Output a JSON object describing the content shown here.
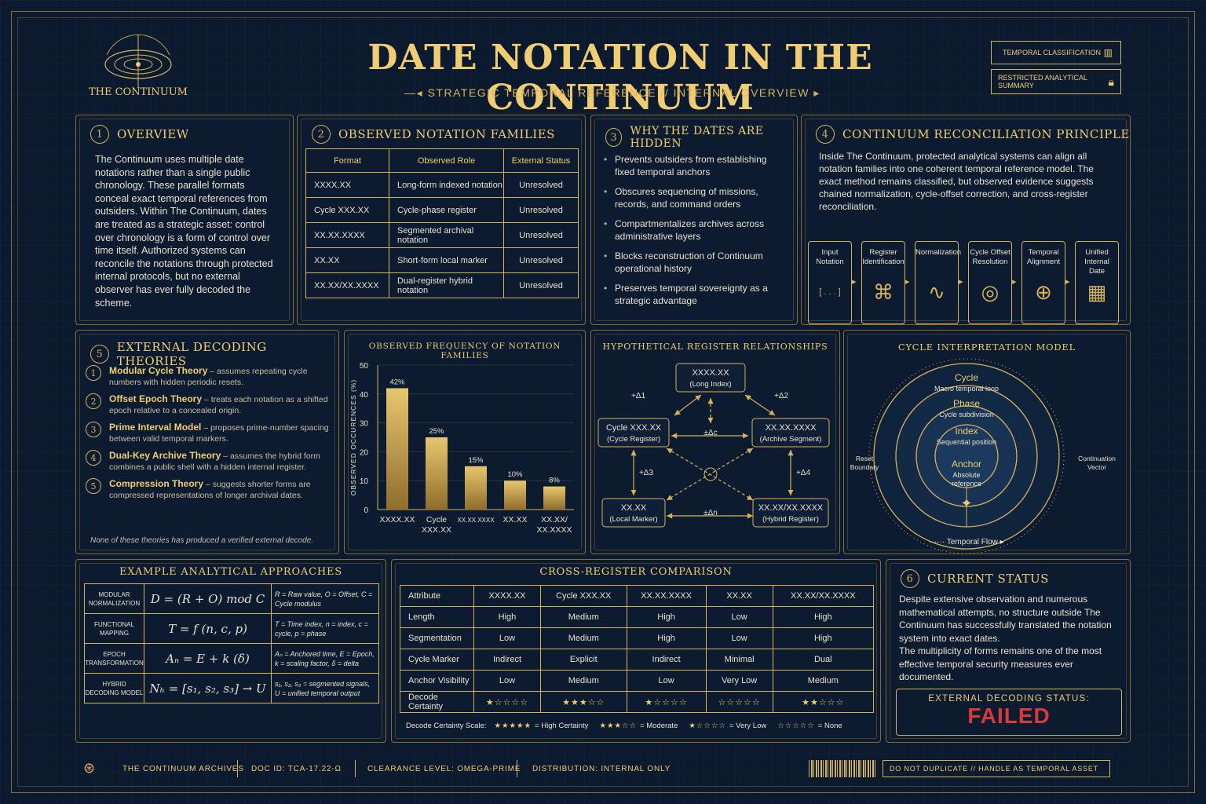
{
  "header": {
    "title": "DATE NOTATION IN THE CONTINUUM",
    "subtitle": "STRATEGIC TEMPORAL REFERENCE // INTERNAL OVERVIEW",
    "logo_text": "THE CONTINUUM",
    "badge1": "TEMPORAL CLASSIFICATION",
    "badge2": "RESTRICTED ANALYTICAL SUMMARY"
  },
  "overview": {
    "num": "1",
    "title": "OVERVIEW",
    "text": "The Continuum uses multiple date notations rather than a single public chronology. These parallel formats conceal exact temporal references from outsiders. Within The Continuum, dates are treated as a strategic asset: control over chronology is a form of control over time itself. Authorized systems can reconcile the notations through protected internal protocols, but no external observer has ever fully decoded the scheme."
  },
  "families": {
    "num": "2",
    "title": "OBSERVED NOTATION FAMILIES",
    "headers": [
      "Format",
      "Observed Role",
      "External Status"
    ],
    "rows": [
      [
        "XXXX.XX",
        "Long-form indexed notation",
        "Unresolved"
      ],
      [
        "Cycle XXX.XX",
        "Cycle-phase register",
        "Unresolved"
      ],
      [
        "XX.XX.XXXX",
        "Segmented archival notation",
        "Unresolved"
      ],
      [
        "XX.XX",
        "Short-form local marker",
        "Unresolved"
      ],
      [
        "XX.XX/XX.XXXX",
        "Dual-register hybrid notation",
        "Unresolved"
      ]
    ]
  },
  "hidden": {
    "num": "3",
    "title": "WHY THE DATES ARE HIDDEN",
    "items": [
      "Prevents outsiders from establishing fixed temporal anchors",
      "Obscures sequencing of missions, records, and command orders",
      "Compartmentalizes archives across administrative layers",
      "Blocks reconstruction of Continuum operational history",
      "Preserves temporal sovereignty as a strategic advantage"
    ]
  },
  "reconcile": {
    "num": "4",
    "title": "CONTINUUM RECONCILIATION PRINCIPLE",
    "text": "Inside The Continuum, protected analytical systems can align all notation families into one coherent temporal reference model. The exact method remains classified, but observed evidence suggests chained normalization, cycle-offset correction, and cross-register reconciliation.",
    "steps": [
      "Input Notation",
      "Register Identification",
      "Normalization",
      "Cycle Offset Resolution",
      "Temporal Alignment",
      "Unified Internal Date"
    ],
    "input_glyph": "[ . . . ]"
  },
  "theories": {
    "num": "5",
    "title": "EXTERNAL DECODING THEORIES",
    "items": [
      {
        "n": "1",
        "name": "Modular Cycle Theory",
        "desc": " – assumes repeating cycle numbers with hidden periodic resets."
      },
      {
        "n": "2",
        "name": "Offset Epoch Theory",
        "desc": " – treats each notation as a shifted epoch relative to a concealed origin."
      },
      {
        "n": "3",
        "name": "Prime Interval Model",
        "desc": " – proposes prime-number spacing between valid temporal markers."
      },
      {
        "n": "4",
        "name": "Dual-Key Archive Theory",
        "desc": " – assumes the hybrid form combines a public shell with a hidden internal register."
      },
      {
        "n": "5",
        "name": "Compression Theory",
        "desc": " – suggests shorter forms are compressed representations of longer archival dates."
      }
    ],
    "footnote": "None of these theories has produced a verified external decode."
  },
  "chart_data": {
    "type": "bar",
    "title": "OBSERVED FREQUENCY OF NOTATION FAMILIES",
    "ylabel": "OBSERVED OCCURENCES (%)",
    "categories": [
      "XXXX.XX",
      "Cycle XXX.XX",
      "XX.XX.XXXX",
      "XX.XX",
      "XX.XX/ XX.XXXX"
    ],
    "values": [
      42,
      25,
      15,
      10,
      8
    ],
    "labels": [
      "42%",
      "25%",
      "15%",
      "10%",
      "8%"
    ],
    "ylim": [
      0,
      50
    ],
    "yticks": [
      0,
      10,
      20,
      30,
      40,
      50
    ]
  },
  "registers": {
    "title": "HYPOTHETICAL REGISTER RELATIONSHIPS",
    "nodes": [
      {
        "l1": "XXXX.XX",
        "l2": "(Long Index)"
      },
      {
        "l1": "Cycle XXX.XX",
        "l2": "(Cycle Register)"
      },
      {
        "l1": "XX.XX.XXXX",
        "l2": "(Archive Segment)"
      },
      {
        "l1": "XX.XX",
        "l2": "(Local Marker)"
      },
      {
        "l1": "XX.XX/XX.XXXX",
        "l2": "(Hybrid Register)"
      }
    ],
    "deltas": [
      "+Δ1",
      "+Δ2",
      "±Δc",
      "+Δ3",
      "+Δ4",
      "±Δn"
    ]
  },
  "cycle": {
    "title": "CYCLE INTERPRETATION MODEL",
    "rings": [
      {
        "name": "Cycle",
        "desc": "Macro temporal loop"
      },
      {
        "name": "Phase",
        "desc": "Cycle subdivision"
      },
      {
        "name": "Index",
        "desc": "Sequential position"
      },
      {
        "name": "Anchor",
        "desc": "Absolute reference"
      }
    ],
    "left_label": "Reset Boundary",
    "right_label": "Continuation Vector",
    "bottom_label": "Temporal Flow"
  },
  "approaches": {
    "title": "EXAMPLE ANALYTICAL APPROACHES",
    "rows": [
      {
        "name": "MODULAR NORMALIZATION",
        "formula": "D = (R + O) mod C",
        "note": "R = Raw value, O = Offset, C = Cycle modulus"
      },
      {
        "name": "FUNCTIONAL MAPPING",
        "formula": "T = f (n, c, p)",
        "note": "T = Time index, n = index, c = cycle, p = phase"
      },
      {
        "name": "EPOCH TRANSFORMATION",
        "formula": "Aₙ = E + k (δ)",
        "note": "Aₙ = Anchored time, E = Epoch, k = scaling factor, δ = delta"
      },
      {
        "name": "HYBRID DECODING MODEL",
        "formula": "Nₕ = [s₁, s₂, s₃] → U",
        "note": "s₁, s₂, s₃ = segmented signals, U = unified temporal output"
      }
    ]
  },
  "comparison": {
    "title": "CROSS-REGISTER COMPARISON",
    "headers": [
      "Attribute",
      "XXXX.XX",
      "Cycle XXX.XX",
      "XX.XX.XXXX",
      "XX.XX",
      "XX.XX/XX.XXXX"
    ],
    "rows": [
      [
        "Length",
        "High",
        "Medium",
        "High",
        "Low",
        "High"
      ],
      [
        "Segmentation",
        "Low",
        "Medium",
        "High",
        "Low",
        "High"
      ],
      [
        "Cycle Marker",
        "Indirect",
        "Explicit",
        "Indirect",
        "Minimal",
        "Dual"
      ],
      [
        "Anchor Visibility",
        "Low",
        "Medium",
        "Low",
        "Very Low",
        "Medium"
      ]
    ],
    "certainty_label": "Decode Certainty",
    "certainty": [
      "★☆☆☆☆",
      "★★★☆☆",
      "★☆☆☆☆",
      "☆☆☆☆☆",
      "★★☆☆☆"
    ],
    "scale_label": "Decode Certainty Scale:",
    "scale": [
      {
        "stars": "★★★★★",
        "text": "= High Certainty"
      },
      {
        "stars": "★★★☆☆",
        "text": "= Moderate"
      },
      {
        "stars": "★☆☆☆☆",
        "text": "= Very Low"
      },
      {
        "stars": "☆☆☆☆☆",
        "text": "= None"
      }
    ]
  },
  "status": {
    "num": "6",
    "title": "CURRENT STATUS",
    "text1": "Despite extensive observation and numerous mathematical attempts, no structure outside The Continuum has successfully translated the notation system into exact dates.",
    "text2": "The multiplicity of forms remains one of the most effective temporal security measures ever documented.",
    "label": "EXTERNAL DECODING STATUS:",
    "value": "FAILED",
    "colors": {
      "failed": "#d83a3a",
      "gold": "#d7b25c"
    }
  },
  "footer": {
    "archives": "THE CONTINUUM ARCHIVES",
    "doc": "DOC ID:  TCA-17.22-Ω",
    "clearance": "CLEARANCE LEVEL: OMEGA-PRIME",
    "distribution": "DISTRIBUTION: INTERNAL ONLY",
    "notice": "DO NOT DUPLICATE // HANDLE AS TEMPORAL ASSET"
  }
}
